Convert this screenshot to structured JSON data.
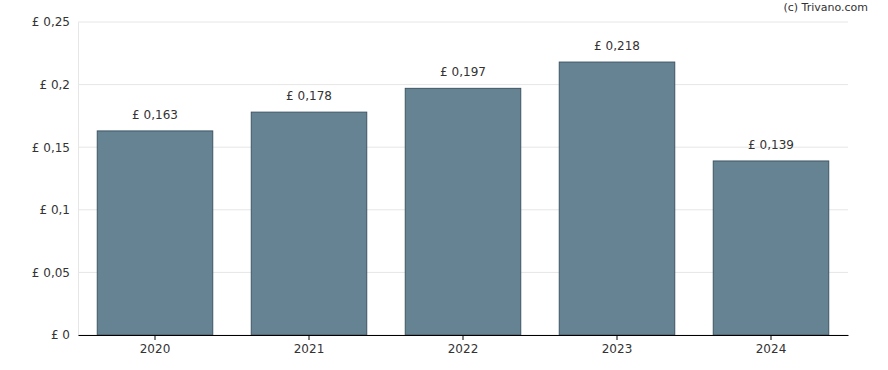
{
  "chart_data": {
    "type": "bar",
    "annotations": [
      "(c) Trivano.com"
    ],
    "categories": [
      "2020",
      "2021",
      "2022",
      "2023",
      "2024"
    ],
    "values": [
      0.163,
      0.178,
      0.197,
      0.218,
      0.139
    ],
    "value_labels": [
      "£ 0,163",
      "£ 0,178",
      "£ 0,197",
      "£ 0,218",
      "£ 0,139"
    ],
    "data_labels": true,
    "color": "#668394",
    "ylim": [
      0,
      0.25
    ],
    "yticks": [
      {
        "value": 0,
        "label": "£ 0"
      },
      {
        "value": 0.05,
        "label": "£ 0,05"
      },
      {
        "value": 0.1,
        "label": "£ 0,1"
      },
      {
        "value": 0.15,
        "label": "£ 0,15"
      },
      {
        "value": 0.2,
        "label": "£ 0,2"
      },
      {
        "value": 0.25,
        "label": "£ 0,25"
      }
    ],
    "grid": true
  }
}
